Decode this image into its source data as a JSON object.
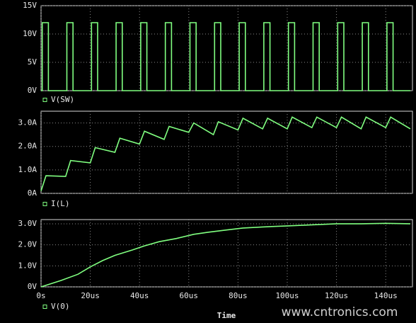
{
  "chart_data": [
    {
      "type": "line",
      "x": [
        0,
        0.5,
        0.5,
        3,
        3,
        10.5,
        10.5,
        13,
        13,
        20.5,
        20.5,
        23,
        23,
        30.5,
        30.5,
        33,
        33,
        40.5,
        40.5,
        43,
        43,
        50.5,
        50.5,
        53,
        53,
        60.5,
        60.5,
        63,
        63,
        70.5,
        70.5,
        73,
        73,
        80.5,
        80.5,
        83,
        83,
        90.5,
        90.5,
        93,
        93,
        100.5,
        100.5,
        103,
        103,
        110.5,
        110.5,
        113,
        113,
        120.5,
        120.5,
        123,
        123,
        130.5,
        130.5,
        133,
        133,
        140.5,
        140.5,
        143,
        143,
        150
      ],
      "series": [
        {
          "name": "V(SW)",
          "color": "#80ff80",
          "values": [
            0,
            0,
            12,
            12,
            0,
            0,
            12,
            12,
            0,
            0,
            12,
            12,
            0,
            0,
            12,
            12,
            0,
            0,
            12,
            12,
            0,
            0,
            12,
            12,
            0,
            0,
            12,
            12,
            0,
            0,
            12,
            12,
            0,
            0,
            12,
            12,
            0,
            0,
            12,
            12,
            0,
            0,
            12,
            12,
            0,
            0,
            12,
            12,
            0,
            0,
            12,
            12,
            0,
            0,
            12,
            12,
            0,
            0,
            12,
            12,
            0,
            0
          ]
        }
      ],
      "xlim": [
        0,
        150
      ],
      "ylim": [
        0,
        15
      ],
      "yticks": [
        {
          "value": 0,
          "label": "0V"
        },
        {
          "value": 5,
          "label": "5V"
        },
        {
          "value": 10,
          "label": "10V"
        },
        {
          "value": 15,
          "label": "15V"
        }
      ]
    },
    {
      "type": "line",
      "x": [
        0,
        2,
        10,
        12,
        20,
        22,
        30,
        32,
        40,
        42,
        50,
        52,
        60,
        62,
        70,
        72,
        80,
        82,
        90,
        92,
        100,
        102,
        110,
        112,
        120,
        122,
        130,
        132,
        140,
        142,
        150
      ],
      "series": [
        {
          "name": "I(L)",
          "color": "#80ff80",
          "values": [
            0.1,
            0.75,
            0.72,
            1.4,
            1.3,
            1.95,
            1.75,
            2.35,
            2.1,
            2.65,
            2.3,
            2.85,
            2.6,
            3.0,
            2.5,
            3.05,
            2.7,
            3.2,
            2.75,
            3.2,
            2.75,
            3.25,
            2.8,
            3.25,
            2.8,
            3.25,
            2.75,
            3.25,
            2.8,
            3.25,
            2.75
          ]
        }
      ],
      "xlim": [
        0,
        150
      ],
      "ylim": [
        0,
        3.5
      ],
      "yticks": [
        {
          "value": 0,
          "label": "0A"
        },
        {
          "value": 1,
          "label": "1.0A"
        },
        {
          "value": 2,
          "label": "2.0A"
        },
        {
          "value": 3,
          "label": "3.0A"
        }
      ]
    },
    {
      "type": "line",
      "x": [
        0,
        8,
        15,
        20,
        25,
        30,
        37,
        42,
        48,
        55,
        62,
        68,
        75,
        82,
        90,
        100,
        110,
        120,
        130,
        140,
        150
      ],
      "series": [
        {
          "name": "V(0)",
          "color": "#80ff80",
          "values": [
            0,
            0.3,
            0.6,
            0.95,
            1.25,
            1.5,
            1.75,
            1.95,
            2.15,
            2.3,
            2.5,
            2.6,
            2.7,
            2.8,
            2.85,
            2.9,
            2.95,
            3.0,
            3.0,
            3.02,
            3.0
          ]
        }
      ],
      "xlim": [
        0,
        150
      ],
      "ylim": [
        0,
        3.2
      ],
      "yticks": [
        {
          "value": 0,
          "label": "0V"
        },
        {
          "value": 1,
          "label": "1.0V"
        },
        {
          "value": 2,
          "label": "2.0V"
        },
        {
          "value": 3,
          "label": "3.0V"
        }
      ],
      "xticks": [
        {
          "value": 0,
          "label": "0s"
        },
        {
          "value": 20,
          "label": "20us"
        },
        {
          "value": 40,
          "label": "40us"
        },
        {
          "value": 60,
          "label": "60us"
        },
        {
          "value": 80,
          "label": "80us"
        },
        {
          "value": 100,
          "label": "100us"
        },
        {
          "value": 120,
          "label": "120us"
        },
        {
          "value": 140,
          "label": "140us"
        }
      ],
      "xlabel": "Time"
    }
  ],
  "watermark": "www.cntronics.com"
}
